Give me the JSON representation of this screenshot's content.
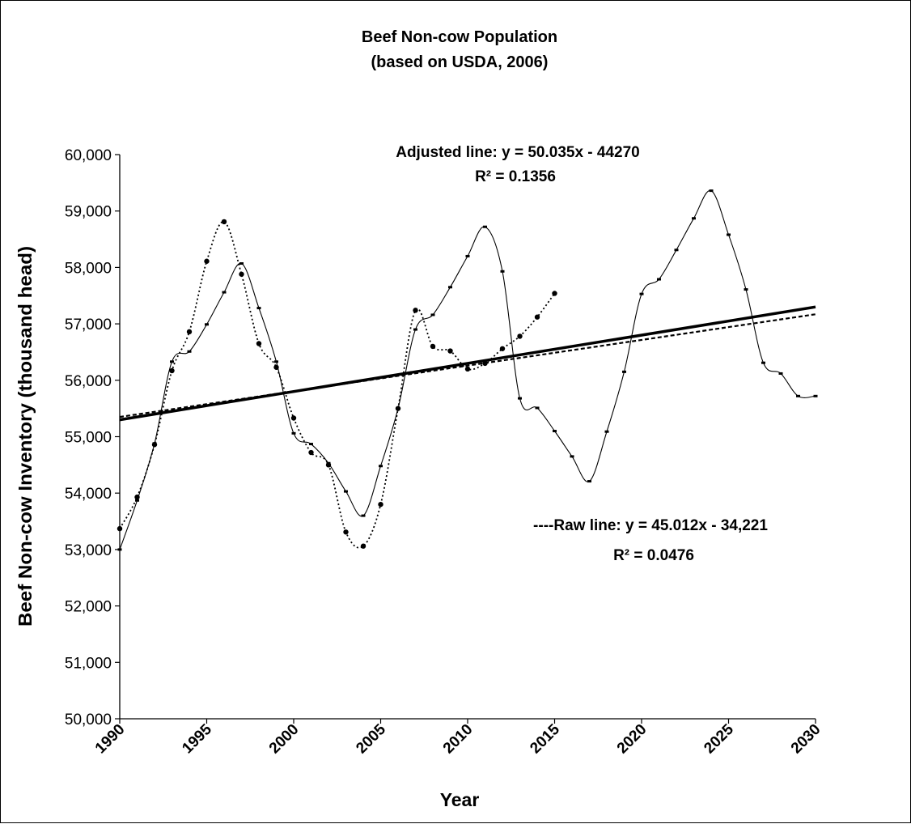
{
  "chart_data": {
    "type": "line",
    "title": "Beef Non-cow Population",
    "subtitle": "(based on USDA, 2006)",
    "xlabel": "Year",
    "ylabel": "Beef Non-cow Inventory (thousand head)",
    "xlim": [
      1990,
      2030
    ],
    "ylim": [
      50000,
      60000
    ],
    "x_ticks": [
      1990,
      1995,
      2000,
      2005,
      2010,
      2015,
      2020,
      2025,
      2030
    ],
    "y_ticks": [
      50000,
      51000,
      52000,
      53000,
      54000,
      55000,
      56000,
      57000,
      58000,
      59000,
      60000
    ],
    "y_tick_labels": [
      "50,000",
      "51,000",
      "52,000",
      "53,000",
      "54,000",
      "55,000",
      "56,000",
      "57,000",
      "58,000",
      "59,000",
      "60,000"
    ],
    "grid": false,
    "legend": "none",
    "series": [
      {
        "style": "dotted-circle-markers",
        "color": "#000000",
        "x": [
          1990,
          1991,
          1992,
          1993,
          1994,
          1995,
          1996,
          1997,
          1998,
          1999,
          2000,
          2001,
          2002,
          2003,
          2004,
          2005,
          2006,
          2007,
          2008,
          2009,
          2010,
          2011,
          2012,
          2013,
          2014,
          2015
        ],
        "y": [
          53370,
          53930,
          54860,
          56170,
          56860,
          58110,
          58810,
          57880,
          56650,
          56230,
          55330,
          54720,
          54500,
          53310,
          53060,
          53800,
          55500,
          57240,
          56600,
          56520,
          56200,
          56300,
          56560,
          56780,
          57120,
          57540
        ]
      },
      {
        "style": "solid-dash-markers",
        "color": "#000000",
        "x": [
          1990,
          1991,
          1992,
          1993,
          1994,
          1995,
          1996,
          1997,
          1998,
          1999,
          2000,
          2001,
          2002,
          2003,
          2004,
          2005,
          2006,
          2007,
          2008,
          2009,
          2010,
          2011,
          2012,
          2013,
          2014,
          2015,
          2016,
          2017,
          2018,
          2019,
          2020,
          2021,
          2022,
          2023,
          2024,
          2025,
          2026,
          2027,
          2028,
          2029,
          2030
        ],
        "y": [
          53000,
          53870,
          54880,
          56330,
          56510,
          56990,
          57560,
          58070,
          57280,
          56330,
          55060,
          54870,
          54530,
          54030,
          53600,
          54480,
          55500,
          56900,
          57160,
          57650,
          58200,
          58720,
          57930,
          55680,
          55510,
          55100,
          54650,
          54210,
          55090,
          56150,
          57530,
          57790,
          58310,
          58870,
          59360,
          58580,
          57610,
          56310,
          56120,
          55720,
          55720
        ]
      },
      {
        "style": "solid-thick",
        "color": "#000000",
        "x": [
          1990,
          2030
        ],
        "y": [
          55300,
          57300
        ]
      },
      {
        "style": "dashed",
        "color": "#000000",
        "x": [
          1990,
          2030
        ],
        "y": [
          55350,
          57170
        ]
      }
    ],
    "annotations": [
      {
        "id": "adjusted-eq",
        "text": "Adjusted line: y = 50.035x - 44270"
      },
      {
        "id": "adjusted-r2",
        "text": "R² = 0.1356"
      },
      {
        "id": "raw-eq",
        "text": "----Raw line: y = 45.012x - 34,221"
      },
      {
        "id": "raw-r2",
        "text": "R² = 0.0476"
      }
    ]
  }
}
